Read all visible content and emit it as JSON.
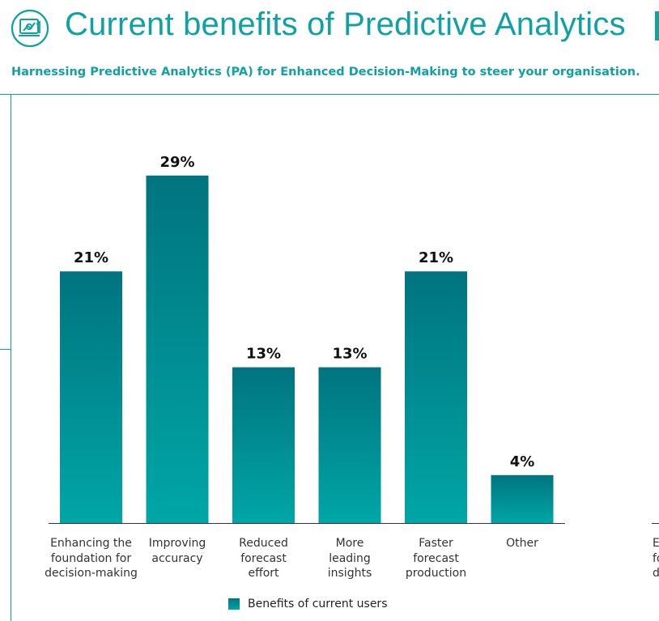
{
  "header": {
    "title": "Current benefits of Predictive Analytics",
    "subtitle": "Harnessing Predictive Analytics (PA) for Enhanced Decision-Making to steer your organisation."
  },
  "icons": {
    "logo": "analytics-report-icon"
  },
  "colors": {
    "accent": "#10a1a4",
    "bar_top": "#007480",
    "bar_bottom": "#00a6a6",
    "label_text": "#111111"
  },
  "chart_data": {
    "type": "bar",
    "title": "",
    "xlabel": "",
    "ylabel": "",
    "ylim": [
      0,
      30
    ],
    "grid": false,
    "legend_position": "bottom",
    "categories": [
      "Enhancing the foundation for decision-making",
      "Improving accuracy",
      "Reduced forecast effort",
      "More leading insights",
      "Faster forecast production",
      "Other"
    ],
    "category_lines": [
      [
        "Enhancing the",
        "foundation for",
        "decision-making"
      ],
      [
        "Improving",
        "accuracy"
      ],
      [
        "Reduced",
        "forecast",
        "effort"
      ],
      [
        "More",
        "leading",
        "insights"
      ],
      [
        "Faster",
        "forecast",
        "production"
      ],
      [
        "Other"
      ]
    ],
    "series": [
      {
        "name": "Benefits of current users",
        "values": [
          21,
          29,
          13,
          13,
          21,
          4
        ],
        "labels": [
          "21%",
          "29%",
          "13%",
          "13%",
          "21%",
          "4%"
        ]
      }
    ],
    "clipped_next_chart_label_fragments": [
      "E",
      "fo",
      "de"
    ]
  },
  "legend": {
    "label": "Benefits of current users"
  }
}
